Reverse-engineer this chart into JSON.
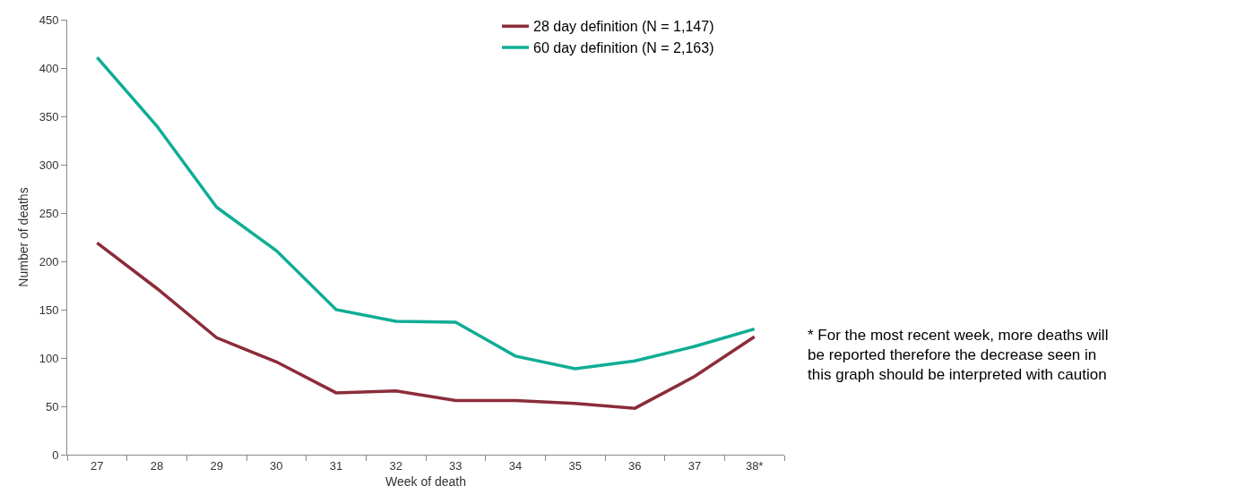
{
  "chart_data": {
    "type": "line",
    "xlabel": "Week of death",
    "ylabel": "Number of deaths",
    "categories": [
      "27",
      "28",
      "29",
      "30",
      "31",
      "32",
      "33",
      "34",
      "35",
      "36",
      "37",
      "38*"
    ],
    "series": [
      {
        "name": "28 day definition (N = 1,147)",
        "color": "#8b2c3a",
        "values": [
          219,
          172,
          121,
          96,
          64,
          66,
          56,
          56,
          53,
          48,
          81,
          122
        ]
      },
      {
        "name": "60 day definition (N = 2,163)",
        "color": "#0fad95",
        "values": [
          411,
          340,
          256,
          211,
          150,
          138,
          137,
          102,
          89,
          97,
          112,
          130
        ]
      }
    ],
    "ylim": [
      0,
      450
    ],
    "yticks": [
      0,
      50,
      100,
      150,
      200,
      250,
      300,
      350,
      400,
      450
    ],
    "grid": false,
    "legend": "top right",
    "marker": "none",
    "line_style": "solid",
    "annotations": [
      "* For the most recent week, more deaths will be reported therefore the decrease seen in this graph should be interpreted with caution"
    ]
  }
}
